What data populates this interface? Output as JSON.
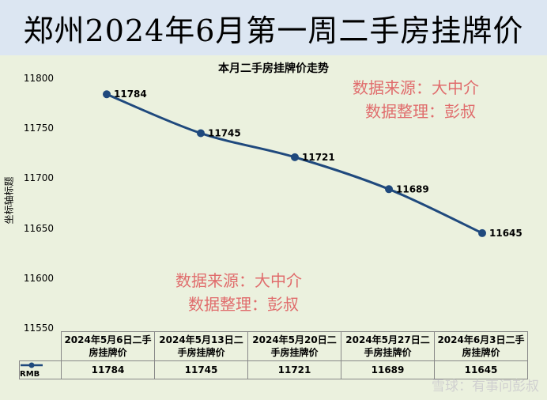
{
  "banner_title": "郑州2024年6月第一周二手房挂牌价",
  "watermark": {
    "line1": "数据来源：大中介",
    "line2": "数据整理：彭叔"
  },
  "footer_watermark": "雪球：有事问彭叔",
  "colors": {
    "line": "#1f497d",
    "banner_bg": "#dce6f2",
    "plot_bg": "#ebf1de",
    "watermark": "#e06c6c"
  },
  "chart_data": {
    "type": "line",
    "title": "本月二手房挂牌价走势",
    "ylabel": "坐标轴标题",
    "xlabel": "",
    "ylim": [
      11550,
      11800
    ],
    "yticks": [
      "11800",
      "11750",
      "11700",
      "11650",
      "11600",
      "11550"
    ],
    "grid": false,
    "categories": [
      "2024年5月6日二手房挂牌价",
      "2024年5月13日二手房挂牌价",
      "2024年5月20日二手房挂牌价",
      "2024年5月27日二手房挂牌价",
      "2024年6月3日二手房挂牌价"
    ],
    "categories_display": [
      [
        "2024年5月6日二手",
        "房挂牌价"
      ],
      [
        "2024年5月13日二",
        "手房挂牌价"
      ],
      [
        "2024年5月20日二",
        "手房挂牌价"
      ],
      [
        "2024年5月27日二",
        "手房挂牌价"
      ],
      [
        "2024年6月3日二手",
        "房挂牌价"
      ]
    ],
    "series": [
      {
        "name": "RMB",
        "values": [
          11784,
          11745,
          11721,
          11689,
          11645
        ]
      }
    ],
    "data_labels": [
      "11784",
      "11745",
      "11721",
      "11689",
      "11645"
    ],
    "legend": "data table"
  }
}
